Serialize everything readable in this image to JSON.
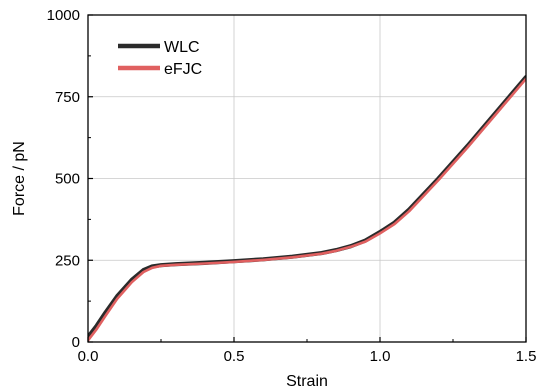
{
  "chart_data": {
    "type": "line",
    "xlabel": "Strain",
    "ylabel": "Force / pN",
    "xlim": [
      0.0,
      1.5
    ],
    "ylim": [
      0,
      1000
    ],
    "xticks": [
      0.0,
      0.5,
      1.0,
      1.5
    ],
    "xtick_labels": [
      "0.0",
      "0.5",
      "1.0",
      "1.5"
    ],
    "yticks": [
      0,
      250,
      500,
      750,
      1000
    ],
    "ytick_labels": [
      "0",
      "250",
      "500",
      "750",
      "1000"
    ],
    "grid": true,
    "legend_position": "top-left",
    "series": [
      {
        "name": "WLC",
        "color": "#2b2b2b",
        "x": [
          0.0,
          0.03,
          0.06,
          0.1,
          0.15,
          0.19,
          0.22,
          0.25,
          0.3,
          0.4,
          0.5,
          0.6,
          0.7,
          0.8,
          0.85,
          0.9,
          0.95,
          1.0,
          1.05,
          1.1,
          1.2,
          1.3,
          1.4,
          1.5
        ],
        "y": [
          15,
          50,
          90,
          140,
          190,
          220,
          231,
          235,
          238,
          242,
          247,
          253,
          261,
          272,
          281,
          293,
          310,
          336,
          365,
          405,
          500,
          600,
          705,
          810
        ]
      },
      {
        "name": "eFJC",
        "color": "#e06060",
        "x": [
          0.0,
          0.03,
          0.06,
          0.1,
          0.15,
          0.19,
          0.22,
          0.25,
          0.3,
          0.4,
          0.5,
          0.6,
          0.7,
          0.8,
          0.85,
          0.9,
          0.95,
          1.0,
          1.05,
          1.1,
          1.2,
          1.3,
          1.4,
          1.5
        ],
        "y": [
          5,
          40,
          80,
          132,
          183,
          214,
          227,
          233,
          236,
          240,
          245,
          251,
          259,
          270,
          279,
          291,
          307,
          332,
          361,
          400,
          495,
          595,
          700,
          805
        ]
      }
    ]
  }
}
